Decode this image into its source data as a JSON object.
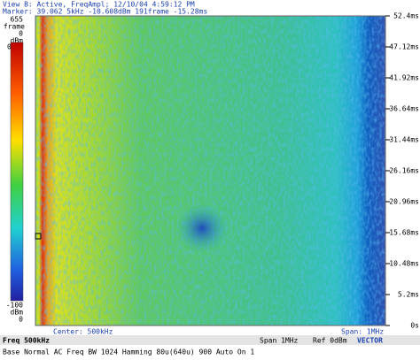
{
  "header": {
    "view_line": "View B: Active, FreqAmpl; 12/10/04 4:59:12 PM",
    "marker_line": "Marker: 39.062 5kHz  -10.608dBm 191frame -15.28ms"
  },
  "left_scale": {
    "frame_max": "655",
    "frame_unit": "frame",
    "frame_min": "0",
    "dbm_top_unit": "dBm",
    "dbm_top": "0",
    "dbm_bottom": "-100",
    "dbm_bottom_unit": "dBm",
    "bottom_zero": "0"
  },
  "right_axis": {
    "ticks": [
      "52.4ms",
      "47.12ms",
      "41.92ms",
      "36.64ms",
      "31.44ms",
      "26.16ms",
      "20.96ms",
      "15.68ms",
      "10.48ms",
      "5.2ms",
      "0s"
    ]
  },
  "footer": {
    "center": "Center: 500kHz",
    "span": "Span: 1MHz"
  },
  "status_bar": {
    "freq": "Freq 500kHz",
    "span": "Span 1MHz",
    "ref": "Ref 0dBm",
    "mode": "VECTOR"
  },
  "settings_line": "Base Normal AC Freq BW 1024 Hamming 80u(640u) 900 Auto On 1"
}
